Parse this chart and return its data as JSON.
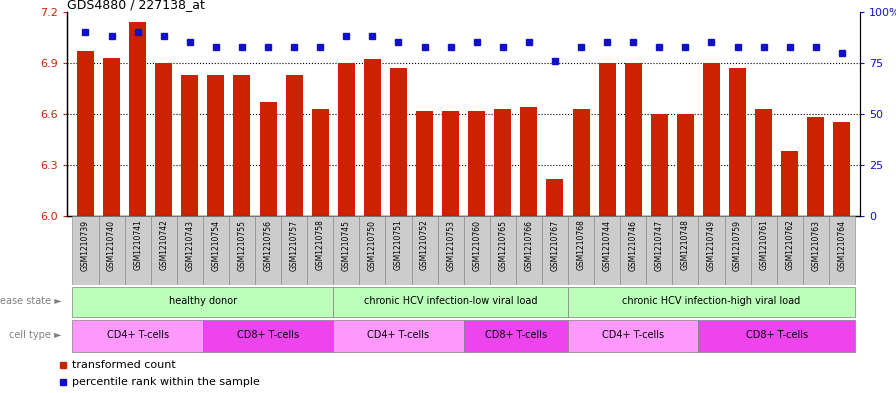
{
  "title": "GDS4880 / 227138_at",
  "samples": [
    "GSM1210739",
    "GSM1210740",
    "GSM1210741",
    "GSM1210742",
    "GSM1210743",
    "GSM1210754",
    "GSM1210755",
    "GSM1210756",
    "GSM1210757",
    "GSM1210758",
    "GSM1210745",
    "GSM1210750",
    "GSM1210751",
    "GSM1210752",
    "GSM1210753",
    "GSM1210760",
    "GSM1210765",
    "GSM1210766",
    "GSM1210767",
    "GSM1210768",
    "GSM1210744",
    "GSM1210746",
    "GSM1210747",
    "GSM1210748",
    "GSM1210749",
    "GSM1210759",
    "GSM1210761",
    "GSM1210762",
    "GSM1210763",
    "GSM1210764"
  ],
  "bar_values": [
    6.97,
    6.93,
    7.14,
    6.9,
    6.83,
    6.83,
    6.83,
    6.67,
    6.83,
    6.63,
    6.9,
    6.92,
    6.87,
    6.62,
    6.62,
    6.62,
    6.63,
    6.64,
    6.22,
    6.63,
    6.9,
    6.9,
    6.6,
    6.6,
    6.9,
    6.87,
    6.63,
    6.38,
    6.58,
    6.55
  ],
  "percentile_values": [
    90,
    88,
    90,
    88,
    85,
    83,
    83,
    83,
    83,
    83,
    88,
    88,
    85,
    83,
    83,
    85,
    83,
    85,
    76,
    83,
    85,
    85,
    83,
    83,
    85,
    83,
    83,
    83,
    83,
    80
  ],
  "ylim_left": [
    6.0,
    7.2
  ],
  "ylim_right": [
    0,
    100
  ],
  "yticks_left": [
    6.0,
    6.3,
    6.6,
    6.9,
    7.2
  ],
  "yticks_right": [
    0,
    25,
    50,
    75,
    100
  ],
  "hlines": [
    6.3,
    6.6,
    6.9
  ],
  "bar_color": "#cc2200",
  "dot_color": "#1111cc",
  "chart_bg": "#ffffff",
  "fig_bg": "#ffffff",
  "xtick_bg": "#cccccc",
  "disease_groups": [
    {
      "label": "healthy donor",
      "start": 0,
      "end": 9
    },
    {
      "label": "chronic HCV infection-low viral load",
      "start": 10,
      "end": 18
    },
    {
      "label": "chronic HCV infection-high viral load",
      "start": 19,
      "end": 29
    }
  ],
  "ds_color": "#bbffbb",
  "cell_type_groups": [
    {
      "label": "CD4+ T-cells",
      "start": 0,
      "end": 4
    },
    {
      "label": "CD8+ T-cells",
      "start": 5,
      "end": 9
    },
    {
      "label": "CD4+ T-cells",
      "start": 10,
      "end": 14
    },
    {
      "label": "CD8+ T-cells",
      "start": 15,
      "end": 18
    },
    {
      "label": "CD4+ T-cells",
      "start": 19,
      "end": 23
    },
    {
      "label": "CD8+ T-cells",
      "start": 24,
      "end": 29
    }
  ],
  "cd4_color": "#ff99ff",
  "cd8_color": "#ee44ee",
  "disease_state_label": "disease state",
  "cell_type_label": "cell type",
  "legend_bar_label": "transformed count",
  "legend_dot_label": "percentile rank within the sample"
}
